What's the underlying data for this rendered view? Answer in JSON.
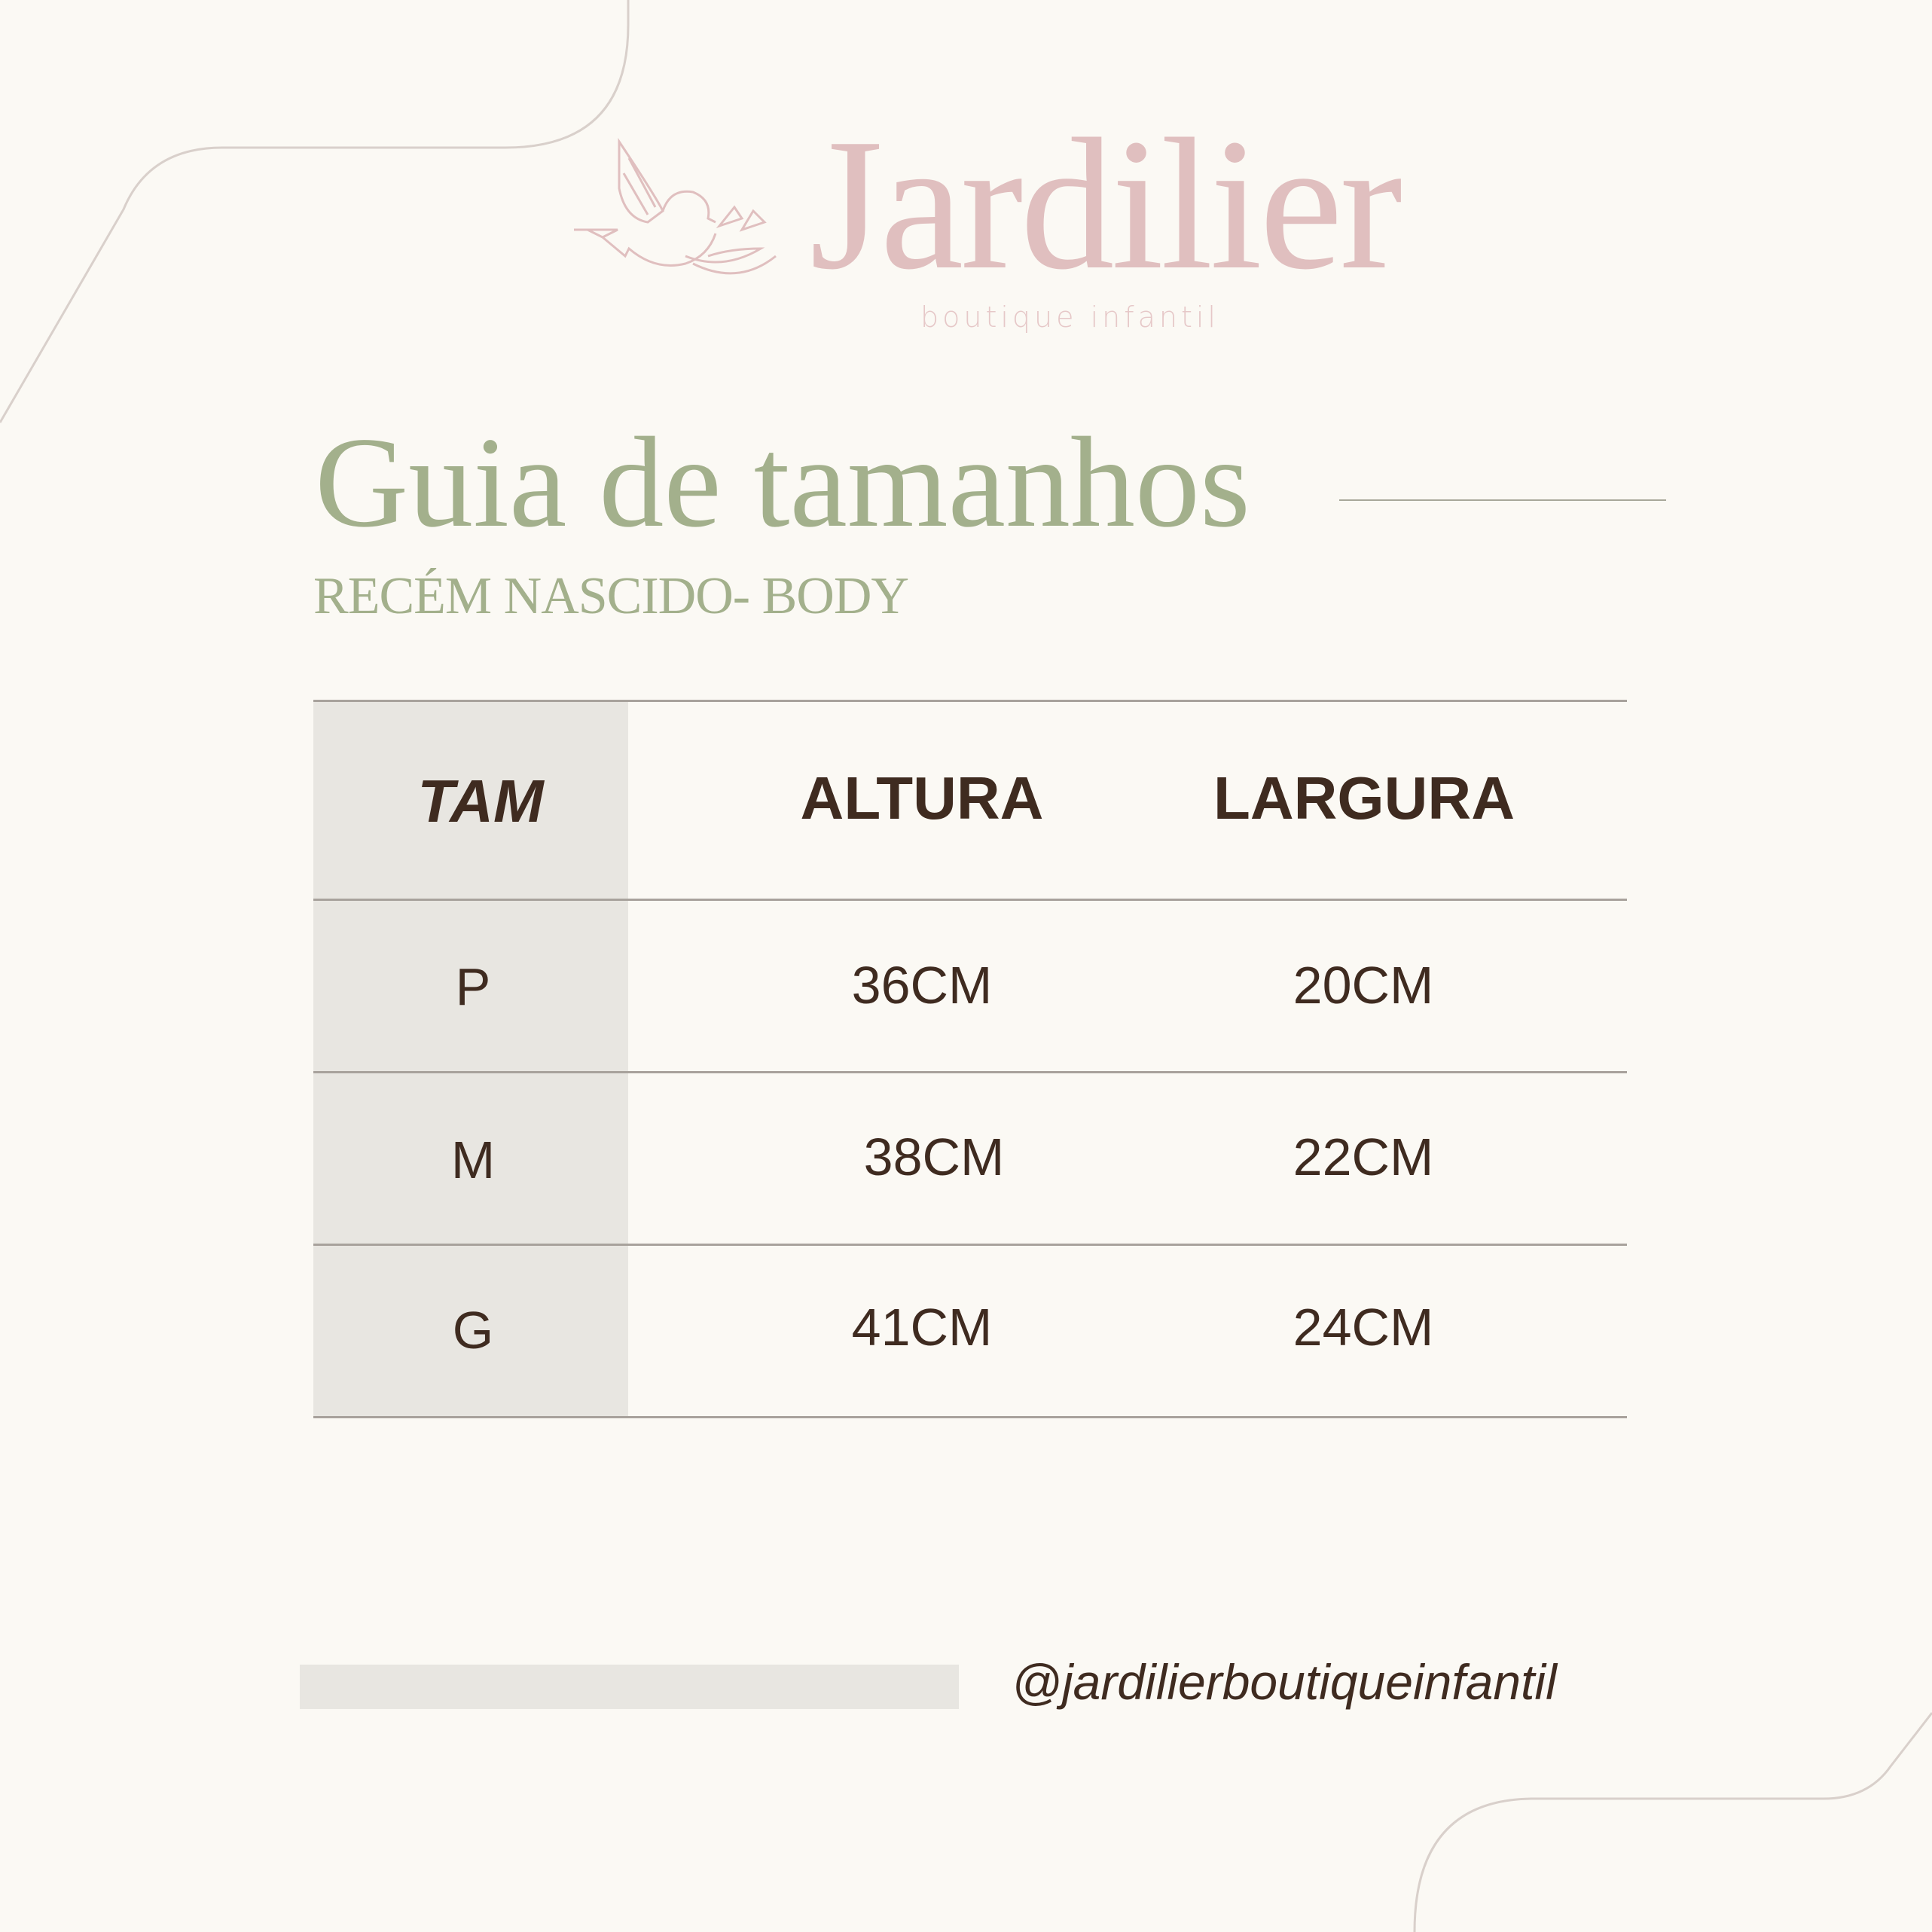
{
  "brand": {
    "name": "Jardilier",
    "tagline": "boutique infantil",
    "color": "#e0bfbf"
  },
  "header": {
    "title": "Guia de tamanhos",
    "subtitle": "RECÉM NASCIDO- BODY",
    "accent_color": "#a3b08c"
  },
  "table": {
    "headers": [
      "TAM",
      "ALTURA",
      "LARGURA"
    ],
    "rows": [
      {
        "size": "P",
        "altura": "36CM",
        "largura": "20CM"
      },
      {
        "size": "M",
        "altura": "38CM",
        "largura": "22CM"
      },
      {
        "size": "G",
        "altura": "41CM",
        "largura": "24CM"
      }
    ],
    "text_color": "#3f2b20"
  },
  "footer": {
    "handle": "@jardilierboutiqueinfantil"
  }
}
